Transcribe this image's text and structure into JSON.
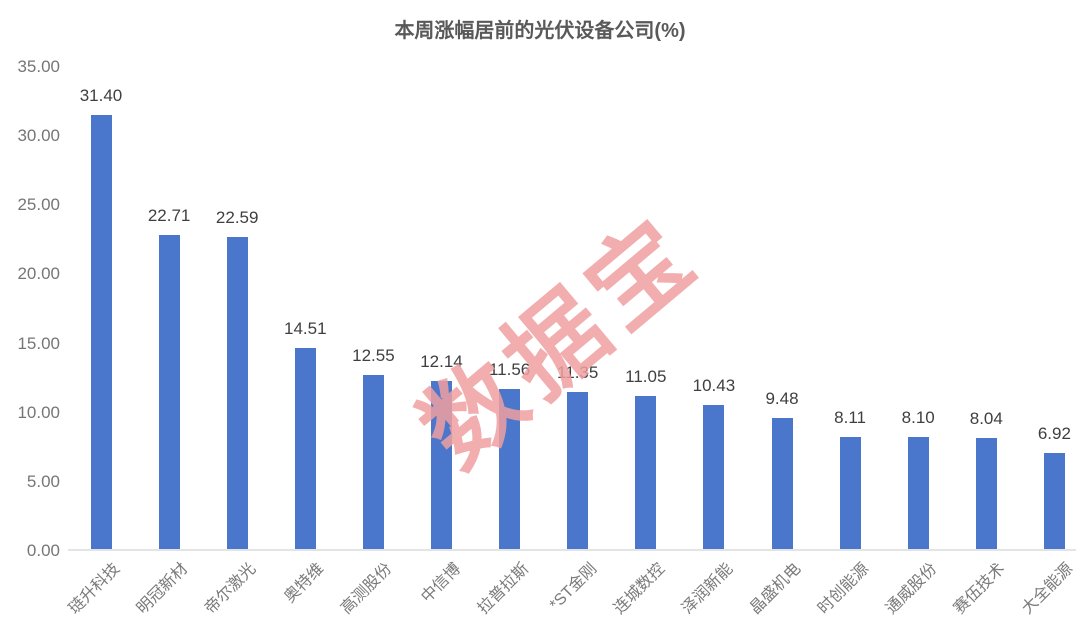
{
  "title": "本周涨幅居前的光伏设备公司(%)",
  "watermark": "数据宝",
  "colors": {
    "bar": "#4a77cb",
    "title_text": "#595959",
    "value_label_text": "#3f3f3f",
    "axis_label_text": "#7a7a7a",
    "baseline": "#e4e4e4",
    "watermark_text": "#f0a0a0",
    "background": "#ffffff"
  },
  "chart_data": {
    "type": "bar",
    "title": "本周涨幅居前的光伏设备公司(%)",
    "categories": [
      "琏升科技",
      "明冠新材",
      "帝尔激光",
      "奥特维",
      "高测股份",
      "中信博",
      "拉普拉斯",
      "*ST金刚",
      "连城数控",
      "泽润新能",
      "晶盛机电",
      "时创能源",
      "通威股份",
      "赛伍技术",
      "大全能源"
    ],
    "values": [
      31.4,
      22.71,
      22.59,
      14.51,
      12.55,
      12.14,
      11.56,
      11.35,
      11.05,
      10.43,
      9.48,
      8.11,
      8.1,
      8.04,
      6.92
    ],
    "value_labels": [
      "31.40",
      "22.71",
      "22.59",
      "14.51",
      "12.55",
      "12.14",
      "11.56",
      "11.35",
      "11.05",
      "10.43",
      "9.48",
      "8.11",
      "8.10",
      "8.04",
      "6.92"
    ],
    "xlabel": "",
    "ylabel": "",
    "ylim": [
      0,
      35
    ],
    "ytick_step": 5,
    "yticks": [
      "35.00",
      "30.00",
      "25.00",
      "20.00",
      "15.00",
      "10.00",
      "5.00",
      "0.00"
    ],
    "grid": false,
    "legend": false,
    "x_label_rotation_deg": -45,
    "bar_color": "#4a77cb"
  }
}
